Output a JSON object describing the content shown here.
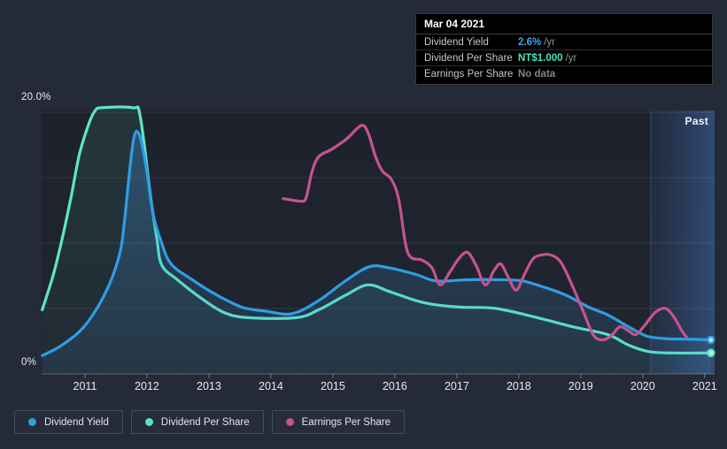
{
  "tooltip": {
    "date": "Mar 04 2021",
    "rows": [
      {
        "label": "Dividend Yield",
        "value": "2.6%",
        "suffix": "/yr",
        "value_color": "#41a7e0"
      },
      {
        "label": "Dividend Per Share",
        "value": "NT$1.000",
        "suffix": "/yr",
        "value_color": "#4ae0c1"
      },
      {
        "label": "Earnings Per Share",
        "value": "No data",
        "suffix": "",
        "value_color": "#7f848e"
      }
    ]
  },
  "chart": {
    "y_top_label": "20.0%",
    "y_bottom_label": "0%",
    "past_label": "Past"
  },
  "legend": [
    {
      "label": "Dividend Yield",
      "color": "#2d9fe2"
    },
    {
      "label": "Dividend Per Share",
      "color": "#55e3c4"
    },
    {
      "label": "Earnings Per Share",
      "color": "#c5538f"
    }
  ],
  "chart_data": {
    "type": "line",
    "x_axis": {
      "min": 2010.3,
      "max": 2021.16,
      "ticks": [
        "2011",
        "2012",
        "2013",
        "2014",
        "2015",
        "2016",
        "2017",
        "2018",
        "2019",
        "2020",
        "2021"
      ]
    },
    "y_axis": {
      "min": 0,
      "max": 20.14,
      "unit": "%",
      "gridlines": [
        0,
        5,
        10,
        15,
        20
      ]
    },
    "past_band": {
      "start": 2020.13
    },
    "series": [
      {
        "name": "Dividend Per Share",
        "color": "#5ee6c6",
        "fill_top": "rgba(90,227,198,0.10)",
        "fill_bottom": "rgba(90,227,198,0.03)",
        "end_dot": true,
        "dot_fill": "#c9f5e9",
        "points": [
          [
            2010.31,
            4.9
          ],
          [
            2010.49,
            7.6
          ],
          [
            2010.63,
            10.3
          ],
          [
            2010.77,
            13.4
          ],
          [
            2010.91,
            16.8
          ],
          [
            2011.06,
            19.1
          ],
          [
            2011.16,
            20.1
          ],
          [
            2011.27,
            20.35
          ],
          [
            2011.77,
            20.35
          ],
          [
            2011.89,
            19.7
          ],
          [
            2012.06,
            13.5
          ],
          [
            2012.16,
            10.3
          ],
          [
            2012.24,
            8.3
          ],
          [
            2012.49,
            7.2
          ],
          [
            2012.87,
            5.8
          ],
          [
            2013.24,
            4.7
          ],
          [
            2013.63,
            4.3
          ],
          [
            2014.41,
            4.3
          ],
          [
            2014.77,
            4.9
          ],
          [
            2015.2,
            6.0
          ],
          [
            2015.56,
            6.8
          ],
          [
            2015.91,
            6.3
          ],
          [
            2016.34,
            5.6
          ],
          [
            2016.63,
            5.3
          ],
          [
            2017.06,
            5.1
          ],
          [
            2017.63,
            5.0
          ],
          [
            2018.3,
            4.3
          ],
          [
            2018.87,
            3.6
          ],
          [
            2019.44,
            3.0
          ],
          [
            2019.77,
            2.2
          ],
          [
            2020.1,
            1.7
          ],
          [
            2020.49,
            1.6
          ],
          [
            2021.1,
            1.6
          ]
        ]
      },
      {
        "name": "Dividend Yield",
        "color": "#2f9de4",
        "fill_top": "rgba(64,150,220,0.30)",
        "fill_bottom": "rgba(64,150,220,0.10)",
        "end_dot": true,
        "dot_fill": "#bfe5fb",
        "points": [
          [
            2010.31,
            1.4
          ],
          [
            2010.63,
            2.2
          ],
          [
            2011.0,
            3.7
          ],
          [
            2011.34,
            6.3
          ],
          [
            2011.55,
            9.0
          ],
          [
            2011.63,
            11.4
          ],
          [
            2011.74,
            16.4
          ],
          [
            2011.81,
            18.4
          ],
          [
            2011.89,
            18.1
          ],
          [
            2011.99,
            15.7
          ],
          [
            2012.1,
            12.2
          ],
          [
            2012.23,
            10.1
          ],
          [
            2012.39,
            8.4
          ],
          [
            2012.73,
            7.2
          ],
          [
            2013.1,
            6.1
          ],
          [
            2013.53,
            5.1
          ],
          [
            2013.91,
            4.8
          ],
          [
            2014.34,
            4.6
          ],
          [
            2014.77,
            5.6
          ],
          [
            2015.2,
            7.1
          ],
          [
            2015.59,
            8.2
          ],
          [
            2015.91,
            8.1
          ],
          [
            2016.34,
            7.6
          ],
          [
            2016.67,
            7.1
          ],
          [
            2017.17,
            7.2
          ],
          [
            2017.63,
            7.2
          ],
          [
            2018.06,
            7.1
          ],
          [
            2018.49,
            6.5
          ],
          [
            2018.77,
            6.0
          ],
          [
            2019.13,
            5.1
          ],
          [
            2019.44,
            4.5
          ],
          [
            2019.77,
            3.6
          ],
          [
            2020.06,
            2.9
          ],
          [
            2020.34,
            2.7
          ],
          [
            2020.73,
            2.65
          ],
          [
            2021.1,
            2.6
          ]
        ]
      },
      {
        "name": "Earnings Per Share",
        "color": "#c5538f",
        "fill_top": null,
        "fill_bottom": null,
        "end_dot": false,
        "dot_fill": null,
        "points": [
          [
            2014.2,
            13.4
          ],
          [
            2014.49,
            13.2
          ],
          [
            2014.57,
            13.5
          ],
          [
            2014.66,
            15.4
          ],
          [
            2014.77,
            16.6
          ],
          [
            2014.99,
            17.2
          ],
          [
            2015.23,
            18.0
          ],
          [
            2015.46,
            19.0
          ],
          [
            2015.57,
            18.4
          ],
          [
            2015.69,
            16.6
          ],
          [
            2015.8,
            15.5
          ],
          [
            2015.94,
            14.9
          ],
          [
            2016.06,
            13.4
          ],
          [
            2016.17,
            10.0
          ],
          [
            2016.26,
            8.9
          ],
          [
            2016.44,
            8.7
          ],
          [
            2016.6,
            8.1
          ],
          [
            2016.73,
            6.8
          ],
          [
            2016.89,
            7.8
          ],
          [
            2017.03,
            8.8
          ],
          [
            2017.17,
            9.3
          ],
          [
            2017.31,
            8.3
          ],
          [
            2017.46,
            6.8
          ],
          [
            2017.6,
            7.9
          ],
          [
            2017.71,
            8.4
          ],
          [
            2017.84,
            7.3
          ],
          [
            2017.96,
            6.4
          ],
          [
            2018.1,
            7.7
          ],
          [
            2018.23,
            8.8
          ],
          [
            2018.37,
            9.1
          ],
          [
            2018.51,
            9.1
          ],
          [
            2018.67,
            8.6
          ],
          [
            2018.84,
            7.0
          ],
          [
            2019.03,
            4.9
          ],
          [
            2019.2,
            3.0
          ],
          [
            2019.34,
            2.6
          ],
          [
            2019.49,
            2.9
          ],
          [
            2019.63,
            3.6
          ],
          [
            2019.77,
            3.3
          ],
          [
            2019.89,
            3.0
          ],
          [
            2020.03,
            3.7
          ],
          [
            2020.2,
            4.7
          ],
          [
            2020.37,
            5.0
          ],
          [
            2020.51,
            4.3
          ],
          [
            2020.63,
            3.3
          ],
          [
            2020.71,
            2.8
          ]
        ]
      }
    ]
  }
}
